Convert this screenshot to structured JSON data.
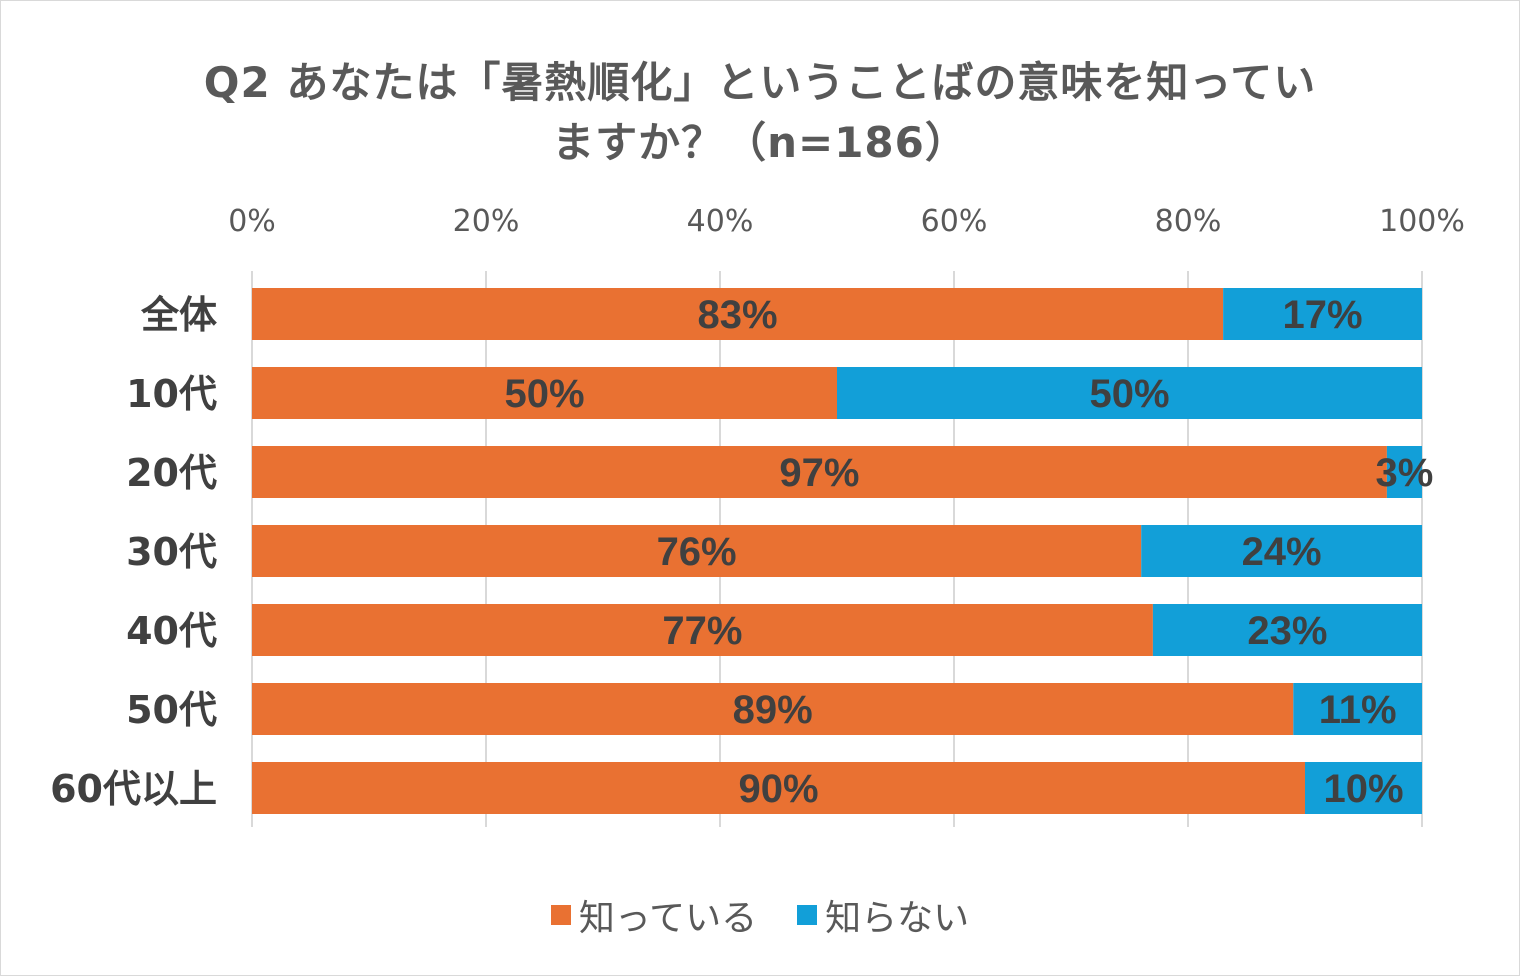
{
  "chart_data": {
    "type": "bar",
    "orientation": "horizontal",
    "stacked": true,
    "title_lines": [
      "Q2 あなたは「暑熱順化」ということばの意味を知ってい",
      "ますか？（n=186）"
    ],
    "categories": [
      "全体",
      "10代",
      "20代",
      "30代",
      "40代",
      "50代",
      "60代以上"
    ],
    "series": [
      {
        "name": "知っている",
        "color": "#E97132",
        "values": [
          83,
          50,
          97,
          76,
          77,
          89,
          90
        ],
        "labels": [
          "83%",
          "50%",
          "97%",
          "76%",
          "77%",
          "89%",
          "90%"
        ]
      },
      {
        "name": "知らない",
        "color": "#129FD8",
        "values": [
          17,
          50,
          3,
          24,
          23,
          11,
          10
        ],
        "labels": [
          "17%",
          "50%",
          "3%",
          "24%",
          "23%",
          "11%",
          "10%"
        ]
      }
    ],
    "xlim": [
      0,
      100
    ],
    "xticks": [
      0,
      20,
      40,
      60,
      80,
      100
    ],
    "xtick_labels": [
      "0%",
      "20%",
      "40%",
      "60%",
      "80%",
      "100%"
    ],
    "x_axis_position": "top",
    "grid": true,
    "legend_position": "bottom"
  }
}
